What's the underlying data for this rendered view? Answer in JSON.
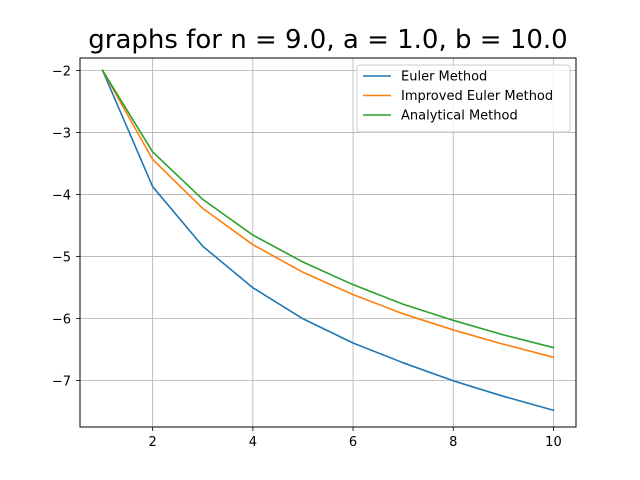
{
  "chart_data": {
    "type": "line",
    "title": "graphs for n = 9.0, a = 1.0, b = 10.0",
    "xlabel": "",
    "ylabel": "",
    "x": [
      1,
      2,
      3,
      4,
      5,
      6,
      7,
      8,
      9,
      10
    ],
    "xlim": [
      0.55,
      10.45
    ],
    "ylim": [
      -7.75,
      -1.8
    ],
    "xticks": [
      2,
      4,
      6,
      8,
      10
    ],
    "yticks": [
      -2,
      -3,
      -4,
      -5,
      -6,
      -7
    ],
    "grid": true,
    "legend_position": "top-right",
    "series": [
      {
        "name": "Euler Method",
        "color": "#1f77b4",
        "values": [
          -2.0,
          -3.875,
          -4.835,
          -5.505,
          -6.005,
          -6.395,
          -6.715,
          -7.005,
          -7.255,
          -7.48
        ]
      },
      {
        "name": "Improved Euler Method",
        "color": "#ff7f0e",
        "values": [
          -2.0,
          -3.435,
          -4.225,
          -4.81,
          -5.255,
          -5.615,
          -5.925,
          -6.185,
          -6.415,
          -6.625
        ]
      },
      {
        "name": "Analytical Method",
        "color": "#2ca02c",
        "values": [
          -2.0,
          -3.315,
          -4.08,
          -4.655,
          -5.09,
          -5.455,
          -5.77,
          -6.03,
          -6.265,
          -6.47
        ]
      }
    ]
  }
}
